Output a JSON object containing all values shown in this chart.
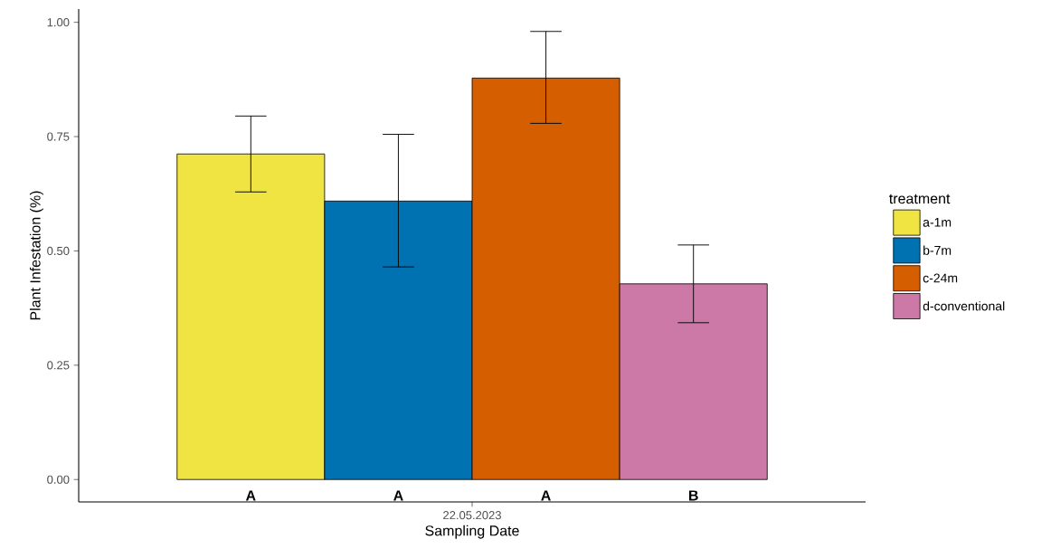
{
  "chart_data": {
    "type": "bar",
    "xlabel": "Sampling Date",
    "ylabel": "Plant Infestation (%)",
    "legend_title": "treatment",
    "categories": [
      "22.05.2023"
    ],
    "series": [
      {
        "name": "a-1m",
        "color": "#f0e442",
        "values": [
          0.712
        ],
        "errors": [
          [
            0.629,
            0.795
          ]
        ],
        "value_labels": [
          "A"
        ]
      },
      {
        "name": "b-7m",
        "color": "#0072b2",
        "values": [
          0.609
        ],
        "errors": [
          [
            0.465,
            0.755
          ]
        ],
        "value_labels": [
          "A"
        ]
      },
      {
        "name": "c-24m",
        "color": "#d55e00",
        "values": [
          0.878
        ],
        "errors": [
          [
            0.779,
            0.98
          ]
        ],
        "value_labels": [
          "A"
        ]
      },
      {
        "name": "d-conventional",
        "color": "#cc79a7",
        "values": [
          0.428
        ],
        "errors": [
          [
            0.343,
            0.513
          ]
        ],
        "value_labels": [
          "B"
        ]
      }
    ],
    "ylim": [
      -0.049,
      1.029
    ],
    "yticks": [
      {
        "value": 0,
        "label": "0.00"
      },
      {
        "value": 0.25,
        "label": "0.25"
      },
      {
        "value": 0.5,
        "label": "0.50"
      },
      {
        "value": 0.75,
        "label": "0.75"
      },
      {
        "value": 1,
        "label": "1.00"
      }
    ],
    "grid": false,
    "legend": "right"
  }
}
